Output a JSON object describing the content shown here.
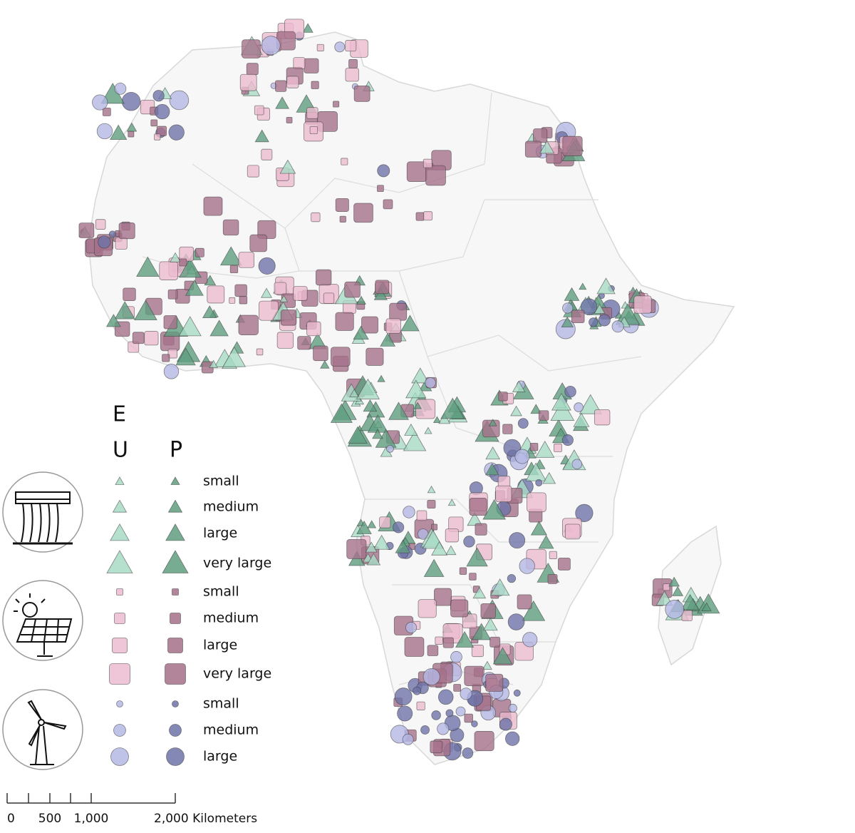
{
  "legend": {
    "headers": [
      "E",
      "U",
      "P"
    ],
    "groups": [
      {
        "sizes": [
          "small",
          "medium",
          "large",
          "very large"
        ]
      },
      {
        "sizes": [
          "small",
          "medium",
          "large",
          "very large"
        ]
      },
      {
        "sizes": [
          "small",
          "medium",
          "large"
        ]
      }
    ]
  },
  "scale_bar": {
    "labels": [
      "0",
      "500",
      "1,000",
      "2,000 Kilometers"
    ]
  }
}
